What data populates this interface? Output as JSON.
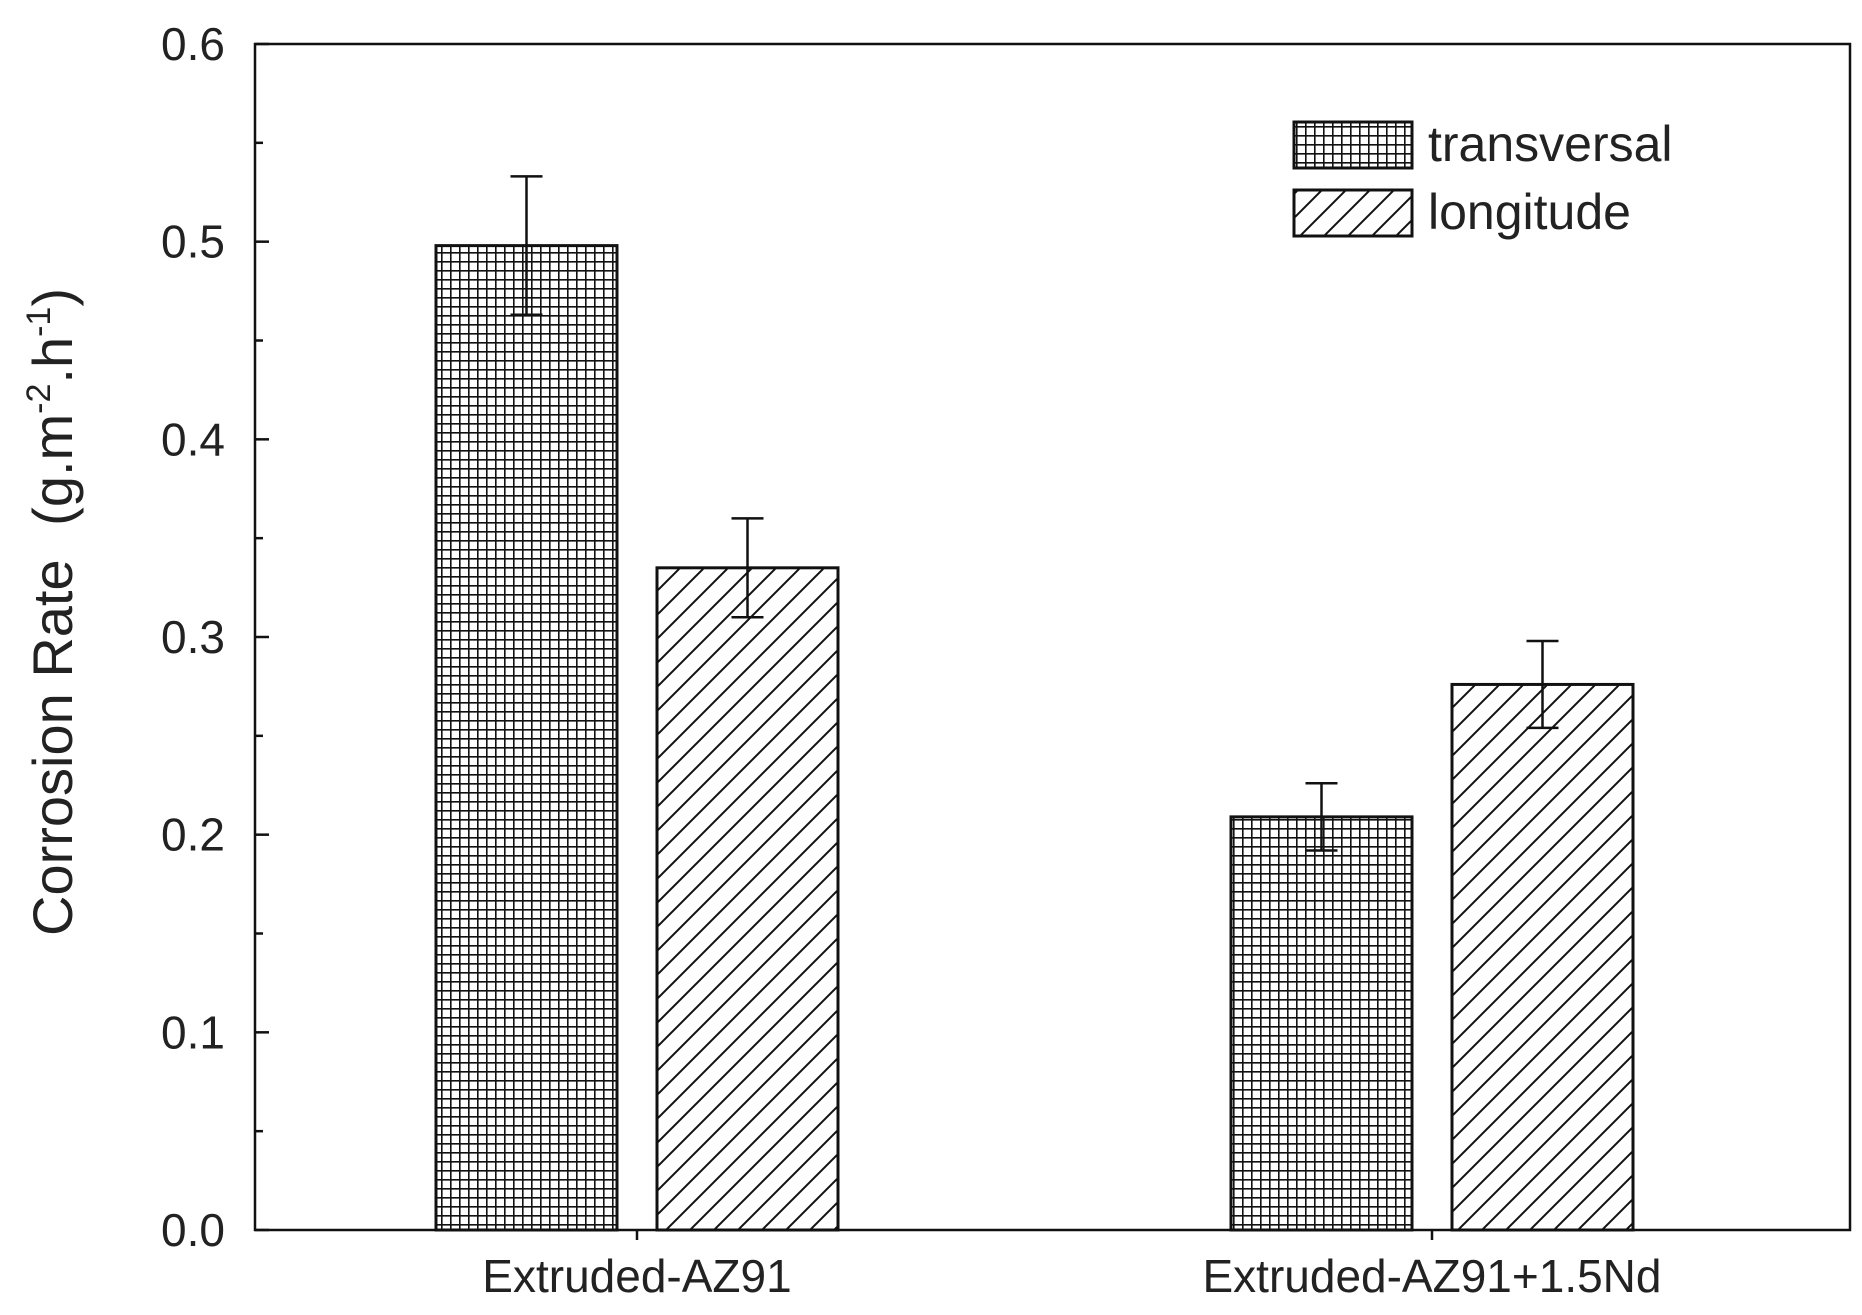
{
  "chart_data": {
    "type": "bar",
    "title": "",
    "xlabel": "",
    "ylabel": "Corrosion Rate",
    "ylabel_unit": {
      "open": "(g.m",
      "exp1": "-2",
      "mid": ".h",
      "exp2": "-1",
      "close": ")"
    },
    "categories": [
      "Extruded-AZ91",
      "Extruded-AZ91+1.5Nd"
    ],
    "series": [
      {
        "name": "transversal",
        "pattern": "crosshatch",
        "values": [
          0.498,
          0.209
        ],
        "error": [
          0.035,
          0.017
        ]
      },
      {
        "name": "longitude",
        "pattern": "diagonal",
        "values": [
          0.335,
          0.276
        ],
        "error": [
          0.025,
          0.022
        ]
      }
    ],
    "ylim": [
      0.0,
      0.6
    ],
    "yticks": [
      "0.0",
      "0.1",
      "0.2",
      "0.3",
      "0.4",
      "0.5",
      "0.6"
    ],
    "grid": false,
    "legend_position": "top-right",
    "colors": {
      "ink": "#111111",
      "text": "#222222",
      "background": "#ffffff"
    }
  }
}
